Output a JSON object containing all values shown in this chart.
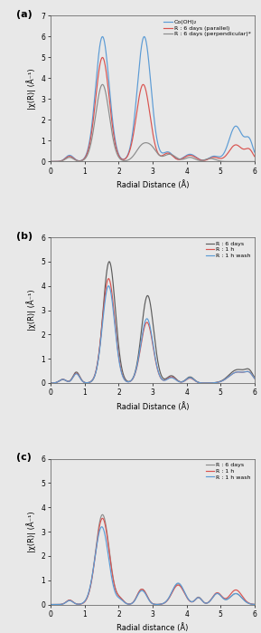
{
  "bg_color": "#e8e8e8",
  "panel_a": {
    "label": "(a)",
    "ylabel": "|χ(R)| (Å⁻¹)",
    "xlabel": "Radial Distance (Å)",
    "xlim": [
      0,
      6
    ],
    "ylim": [
      0,
      7
    ],
    "yticks": [
      0,
      1,
      2,
      3,
      4,
      5,
      6,
      7
    ],
    "xticks": [
      0,
      1,
      2,
      3,
      4,
      5,
      6
    ],
    "legend": [
      "Co(OH)₂",
      "R : 6 days (parallel)",
      "R : 6 days (perpendicular)*"
    ],
    "colors": [
      "#5b9bd5",
      "#d9534f",
      "#8c8c8c"
    ]
  },
  "panel_b": {
    "label": "(b)",
    "ylabel": "|χ(R)| (Å⁻¹)",
    "xlabel": "Radial Distance (Å)",
    "xlim": [
      0,
      6
    ],
    "ylim": [
      0,
      6
    ],
    "yticks": [
      0,
      1,
      2,
      3,
      4,
      5,
      6
    ],
    "xticks": [
      0,
      1,
      2,
      3,
      4,
      5,
      6
    ],
    "legend": [
      "R : 6 days",
      "R : 1 h",
      "R : 1 h wash"
    ],
    "colors": [
      "#5c5c5c",
      "#d9534f",
      "#5b9bd5"
    ]
  },
  "panel_c": {
    "label": "(c)",
    "ylabel": "|χ(R)| (Å⁻¹)",
    "xlabel": "Radial distance (Å)",
    "xlim": [
      0,
      6
    ],
    "ylim": [
      0,
      6
    ],
    "yticks": [
      0,
      1,
      2,
      3,
      4,
      5,
      6
    ],
    "xticks": [
      0,
      1,
      2,
      3,
      4,
      5,
      6
    ],
    "legend": [
      "R : 6 days",
      "R : 1 h",
      "R : 1 h wash"
    ],
    "colors": [
      "#8c8c8c",
      "#d9534f",
      "#5b9bd5"
    ]
  }
}
